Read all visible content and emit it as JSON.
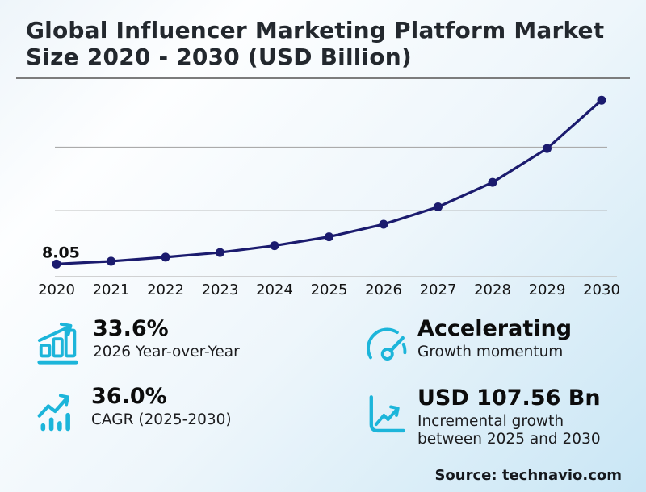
{
  "title": {
    "line1": "Global Influencer Marketing Platform Market",
    "line2": "Size 2020 - 2030 (USD Billion)"
  },
  "chart_data": {
    "type": "line",
    "title": "Global Influencer Marketing Platform Market Size 2020 - 2030 (USD Billion)",
    "x": [
      "2020",
      "2021",
      "2022",
      "2023",
      "2024",
      "2025",
      "2026",
      "2027",
      "2028",
      "2029",
      "2030"
    ],
    "series": [
      {
        "name": "Market size (USD Billion)",
        "values": [
          8.05,
          10.2,
          13.4,
          17.1,
          22.5,
          29.45,
          39.34,
          53.0,
          72.3,
          99.0,
          137.01
        ]
      }
    ],
    "point_label": {
      "x": "2020",
      "text": "8.05"
    },
    "ylim": [
      0,
      150
    ],
    "gridlines_y": [
      50,
      100
    ],
    "grid": "horizontal",
    "legend": "none",
    "line_color": "#1b1b6e"
  },
  "stats": {
    "yoy": {
      "icon": "bar-growth-icon",
      "value": "33.6%",
      "label": "2026 Year-over-Year"
    },
    "cagr": {
      "icon": "trend-bars-icon",
      "value": "36.0%",
      "label": "CAGR (2025-2030)"
    },
    "momentum": {
      "icon": "gauge-icon",
      "value": "Accelerating",
      "label": "Growth momentum"
    },
    "incremental": {
      "icon": "axes-growth-icon",
      "value": "USD 107.56 Bn",
      "label": "Incremental growth between 2025 and 2030"
    }
  },
  "footer": {
    "source_label": "Source: technavio.com"
  },
  "colors": {
    "accent_cyan": "#1cb5da",
    "line_navy": "#1b1b6e",
    "title_text": "#23282e",
    "gridline": "#ababab"
  }
}
